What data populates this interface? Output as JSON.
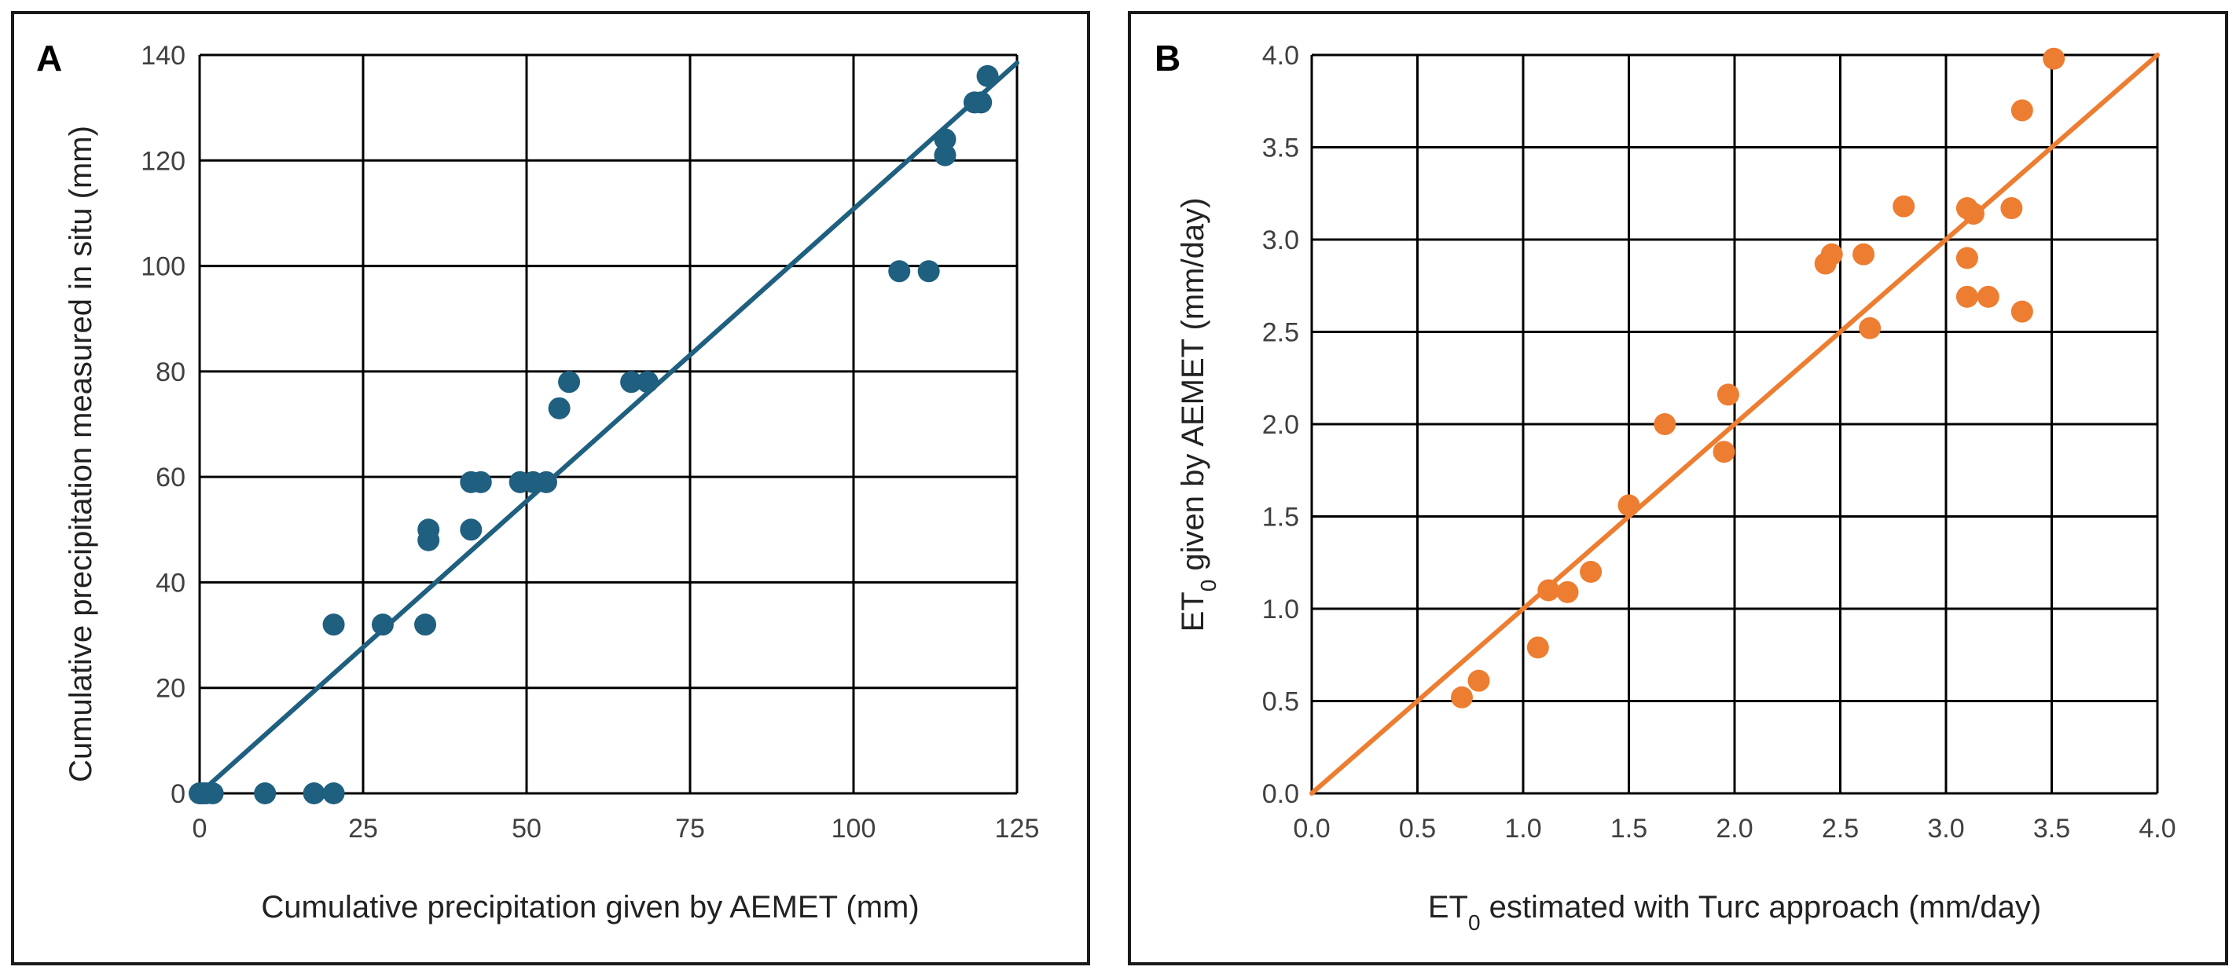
{
  "chart_data": [
    {
      "panel_label": "A",
      "type": "scatter",
      "title": "",
      "xlabel": "Cumulative precipitation given by AEMET (mm)",
      "ylabel": "Cumulative precipitation measured in situ (mm)",
      "xlim": [
        0,
        125
      ],
      "ylim": [
        0,
        140
      ],
      "xticks": [
        0,
        25,
        50,
        75,
        100,
        125
      ],
      "yticks": [
        0,
        20,
        40,
        60,
        80,
        100,
        120,
        140
      ],
      "xtick_labels": [
        "0",
        "25",
        "50",
        "75",
        "100",
        "125"
      ],
      "ytick_labels": [
        "0",
        "20",
        "40",
        "60",
        "80",
        "100",
        "120",
        "140"
      ],
      "grid": true,
      "color": "#1f5f7f",
      "points": [
        [
          0,
          0
        ],
        [
          0.5,
          0
        ],
        [
          1,
          0
        ],
        [
          2,
          0
        ],
        [
          10,
          0
        ],
        [
          17.5,
          0
        ],
        [
          20.5,
          0
        ],
        [
          20.5,
          32
        ],
        [
          28,
          32
        ],
        [
          34.5,
          32
        ],
        [
          35,
          48
        ],
        [
          35,
          50
        ],
        [
          41.5,
          50
        ],
        [
          41.5,
          59
        ],
        [
          43,
          59
        ],
        [
          49,
          59
        ],
        [
          51,
          59
        ],
        [
          53,
          59
        ],
        [
          55,
          73
        ],
        [
          56.5,
          78
        ],
        [
          66,
          78
        ],
        [
          68.5,
          78
        ],
        [
          107,
          99
        ],
        [
          111.5,
          99
        ],
        [
          114,
          121
        ],
        [
          114,
          124
        ],
        [
          118.5,
          131
        ],
        [
          119.5,
          131
        ],
        [
          120.5,
          136
        ]
      ],
      "fit_line": [
        [
          0,
          0
        ],
        [
          125,
          138.5
        ]
      ]
    },
    {
      "panel_label": "B",
      "type": "scatter",
      "title": "",
      "xlabel_main": "ET",
      "xlabel_sub": "0",
      "xlabel_rest": " estimated with Turc approach (mm/day)",
      "ylabel_main": "ET",
      "ylabel_sub": "0",
      "ylabel_rest": " given by AEMET (mm/day)",
      "xlim": [
        0,
        4
      ],
      "ylim": [
        0,
        4
      ],
      "xticks": [
        0,
        0.5,
        1,
        1.5,
        2,
        2.5,
        3,
        3.5,
        4
      ],
      "yticks": [
        0,
        0.5,
        1,
        1.5,
        2,
        2.5,
        3,
        3.5,
        4
      ],
      "xtick_labels": [
        "0.0",
        "0.5",
        "1.0",
        "1.5",
        "2.0",
        "2.5",
        "3.0",
        "3.5",
        "4.0"
      ],
      "ytick_labels": [
        "0.0",
        "0.5",
        "1.0",
        "1.5",
        "2.0",
        "2.5",
        "3.0",
        "3.5",
        "4.0"
      ],
      "grid": true,
      "color": "#ed7d31",
      "points": [
        [
          0.71,
          0.52
        ],
        [
          0.79,
          0.61
        ],
        [
          1.07,
          0.79
        ],
        [
          1.12,
          1.1
        ],
        [
          1.21,
          1.09
        ],
        [
          1.32,
          1.2
        ],
        [
          1.5,
          1.56
        ],
        [
          1.67,
          2.0
        ],
        [
          1.95,
          1.85
        ],
        [
          1.97,
          2.16
        ],
        [
          2.43,
          2.87
        ],
        [
          2.46,
          2.92
        ],
        [
          2.61,
          2.92
        ],
        [
          2.64,
          2.52
        ],
        [
          2.8,
          3.18
        ],
        [
          3.1,
          3.17
        ],
        [
          3.13,
          3.14
        ],
        [
          3.1,
          2.9
        ],
        [
          3.1,
          2.69
        ],
        [
          3.2,
          2.69
        ],
        [
          3.31,
          3.17
        ],
        [
          3.36,
          2.61
        ],
        [
          3.36,
          3.7
        ],
        [
          3.51,
          3.98
        ]
      ],
      "fit_line": [
        [
          0,
          0
        ],
        [
          4,
          4
        ]
      ]
    }
  ]
}
